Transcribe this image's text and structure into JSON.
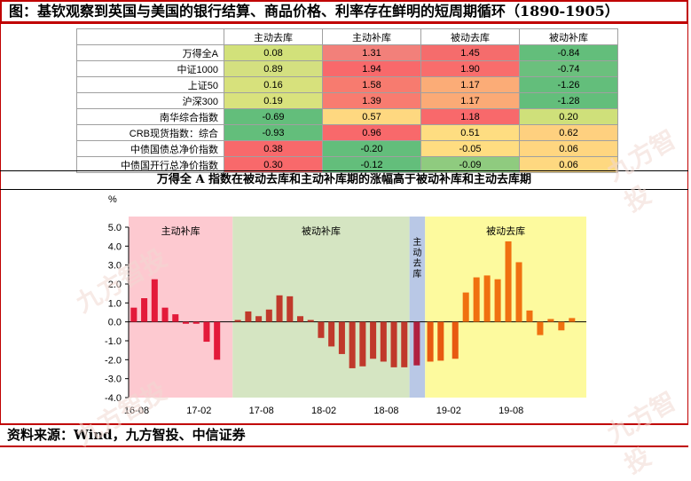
{
  "title": "图：基钦观察到英国与美国的银行结算、商品价格、利率存在鲜明的短周期循环（1890-1905）",
  "table": {
    "headers": [
      "",
      "主动去库",
      "主动补库",
      "被动去库",
      "被动补库"
    ],
    "rows": [
      {
        "label": "万得全A",
        "values": [
          "0.08",
          "1.31",
          "1.45",
          "-0.84"
        ],
        "colors": [
          "#d2e17a",
          "#f2807a",
          "#f56c6c",
          "#63be7b"
        ]
      },
      {
        "label": "中证1000",
        "values": [
          "0.89",
          "1.94",
          "1.90",
          "-0.74"
        ],
        "colors": [
          "#d4e080",
          "#f8696b",
          "#f86d6c",
          "#6bc07d"
        ]
      },
      {
        "label": "上证50",
        "values": [
          "0.16",
          "1.58",
          "1.17",
          "-1.26"
        ],
        "colors": [
          "#d7e17c",
          "#f77b6f",
          "#fbac77",
          "#63be7b"
        ]
      },
      {
        "label": "沪深300",
        "values": [
          "0.19",
          "1.39",
          "1.17",
          "-1.28"
        ],
        "colors": [
          "#d9e27d",
          "#f87c70",
          "#fbaa76",
          "#63be7b"
        ]
      },
      {
        "label": "南华综合指数",
        "values": [
          "-0.69",
          "0.57",
          "1.18",
          "0.20"
        ],
        "colors": [
          "#63be7b",
          "#fed880",
          "#f8696b",
          "#cfe07a"
        ]
      },
      {
        "label": "CRB现货指数：综合",
        "values": [
          "-0.93",
          "0.96",
          "0.51",
          "0.62"
        ],
        "colors": [
          "#63be7b",
          "#f8696b",
          "#fedd81",
          "#fed07f"
        ]
      },
      {
        "label": "中债国债总净价指数",
        "values": [
          "0.38",
          "-0.20",
          "-0.05",
          "0.06"
        ],
        "colors": [
          "#f8696b",
          "#63be7b",
          "#ffdd81",
          "#ffd680"
        ]
      },
      {
        "label": "中债国开行总净价指数",
        "values": [
          "0.30",
          "-0.12",
          "-0.09",
          "0.06"
        ],
        "colors": [
          "#f8696b",
          "#63be7b",
          "#8fcb7f",
          "#fed880"
        ]
      }
    ]
  },
  "subtitle": "万得全 A 指数在被动去库和主动补库期的涨幅高于被动补库和主动去库期",
  "source": "资料来源：Wind，九方智投、中信证券",
  "watermark": "九方智投",
  "chart_data": {
    "type": "bar",
    "ylabel": "%",
    "ylim": [
      -4.0,
      5.0
    ],
    "yticks": [
      "5.0",
      "4.0",
      "3.0",
      "2.0",
      "1.0",
      "0.0",
      "-1.0",
      "-2.0",
      "-3.0",
      "-4.0"
    ],
    "xticks": [
      "16-08",
      "17-02",
      "17-08",
      "18-02",
      "18-08",
      "19-02",
      "19-08"
    ],
    "phases": [
      {
        "label": "主动补库",
        "start": 0,
        "end": 10,
        "color": "#fdc9d0"
      },
      {
        "label": "被动补库",
        "start": 10,
        "end": 27,
        "color": "#d5e5c2"
      },
      {
        "label": "主动去库",
        "start": 27,
        "end": 28.5,
        "color": "#b9c8e6"
      },
      {
        "label": "被动去库",
        "start": 28.5,
        "end": 44,
        "color": "#fdfa9e"
      }
    ],
    "series": [
      {
        "values": [
          0.75,
          1.25,
          2.25,
          0.75,
          0.4,
          -0.1,
          -0.1,
          -1.05,
          -2.0,
          0.1,
          0.55,
          0.3,
          0.65,
          1.4,
          1.35,
          0.3,
          0.1,
          -0.85,
          -1.3,
          -1.7,
          -2.45,
          -2.35,
          -1.95,
          -2.1,
          -2.4,
          -2.4,
          -2.3,
          -2.1,
          -2.05,
          -1.95,
          1.55,
          2.35,
          2.45,
          2.25,
          4.25,
          3.15,
          0.6,
          -0.7,
          0.15,
          -0.45,
          0.2
        ],
        "colors": [
          "#e31a3a",
          "#e31a3a",
          "#e31a3a",
          "#e31a3a",
          "#e31a3a",
          "#e31a3a",
          "#e31a3a",
          "#e31a3a",
          "#e31a3a",
          "#c0392b",
          "#c0392b",
          "#c0392b",
          "#c0392b",
          "#c0392b",
          "#c0392b",
          "#c0392b",
          "#c0392b",
          "#c0392b",
          "#c0392b",
          "#c0392b",
          "#c0392b",
          "#c0392b",
          "#c0392b",
          "#c0392b",
          "#c0392b",
          "#c0392b",
          "#b02040",
          "#e85a10",
          "#e85a10",
          "#e85a10",
          "#f07010",
          "#f07010",
          "#f07010",
          "#f07010",
          "#f07010",
          "#f07010",
          "#f07010",
          "#f07010",
          "#f07010",
          "#f07010",
          "#f07010"
        ]
      }
    ]
  }
}
